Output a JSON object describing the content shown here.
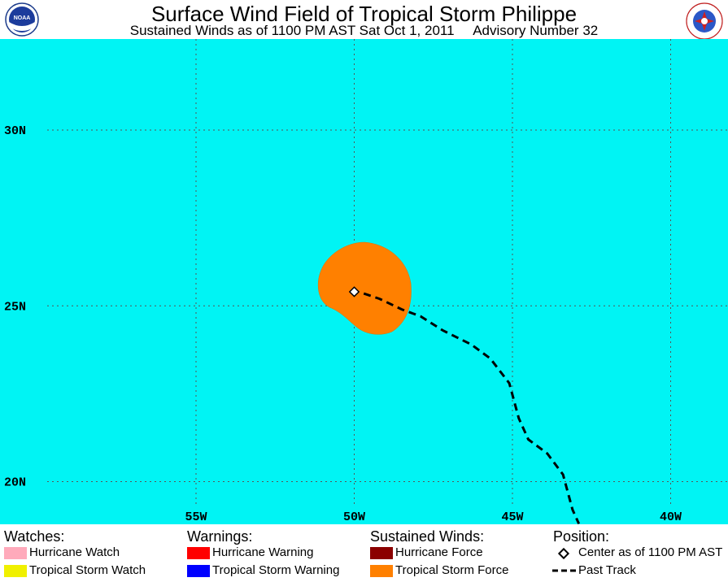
{
  "header": {
    "title": "Surface Wind Field of Tropical Storm Philippe",
    "subtitle": "Sustained Winds as of 1100 PM AST Sat Oct 1, 2011     Advisory Number 32",
    "noaa_logo_text": "NOAA",
    "nws_logo_text": "NATIONAL WEATHER SERVICE"
  },
  "map": {
    "ocean_color": "#00f4f4",
    "grid": true,
    "lat_labels": [
      "30N",
      "25N",
      "20N"
    ],
    "lon_labels": [
      "55W",
      "50W",
      "45W",
      "40W"
    ],
    "wind_field": {
      "category": "Tropical Storm Force",
      "color": "#ff8000"
    },
    "center": {
      "lat": 25.4,
      "lon": -50.0
    },
    "past_track": [
      {
        "lat": 25.35,
        "lon": -49.7
      },
      {
        "lat": 25.2,
        "lon": -49.2
      },
      {
        "lat": 24.9,
        "lon": -48.5
      },
      {
        "lat": 24.7,
        "lon": -47.9
      },
      {
        "lat": 24.3,
        "lon": -47.2
      },
      {
        "lat": 23.9,
        "lon": -46.3
      },
      {
        "lat": 23.5,
        "lon": -45.7
      },
      {
        "lat": 22.8,
        "lon": -45.1
      },
      {
        "lat": 21.8,
        "lon": -44.8
      },
      {
        "lat": 21.2,
        "lon": -44.5
      },
      {
        "lat": 20.8,
        "lon": -43.9
      },
      {
        "lat": 20.2,
        "lon": -43.4
      },
      {
        "lat": 19.2,
        "lon": -43.1
      },
      {
        "lat": 18.8,
        "lon": -42.9
      }
    ]
  },
  "legend": {
    "watches": {
      "heading": "Watches:",
      "items": [
        {
          "label": "Hurricane Watch",
          "color": "#ffaabb"
        },
        {
          "label": "Tropical Storm Watch",
          "color": "#f0f000"
        }
      ]
    },
    "warnings": {
      "heading": "Warnings:",
      "items": [
        {
          "label": "Hurricane Warning",
          "color": "#ff0000"
        },
        {
          "label": "Tropical Storm Warning",
          "color": "#0000ff"
        }
      ]
    },
    "winds": {
      "heading": "Sustained Winds:",
      "items": [
        {
          "label": "Hurricane Force",
          "color": "#8b0000"
        },
        {
          "label": "Tropical Storm Force",
          "color": "#ff8000"
        }
      ]
    },
    "position": {
      "heading": "Position:",
      "items": [
        {
          "label": "Center as of 1100 PM AST"
        },
        {
          "label": "Past Track"
        }
      ]
    }
  }
}
